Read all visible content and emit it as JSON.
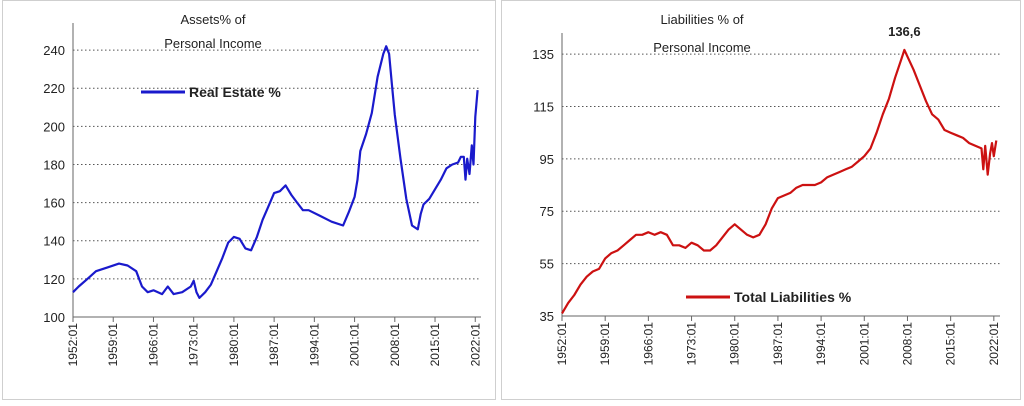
{
  "chart_data": [
    {
      "type": "line",
      "title": [
        "Assets% of",
        "Personal Income"
      ],
      "xlabel": "",
      "ylabel": "",
      "ylim": [
        100,
        250
      ],
      "yticks": [
        100,
        120,
        140,
        160,
        180,
        200,
        220,
        240
      ],
      "xlim": [
        1952,
        2023
      ],
      "xtick_labels": [
        "1952:01",
        "1959:01",
        "1966:01",
        "1973:01",
        "1980:01",
        "1987:01",
        "1994:01",
        "2001:01",
        "2008:01",
        "2015:01",
        "2022:01"
      ],
      "grid": "horizontal-dotted",
      "legend_position": "top-left",
      "series": [
        {
          "name": "Real Estate %",
          "color": "#1a1acc",
          "x": [
            1952.0,
            1953.0,
            1954.5,
            1956.0,
            1958.0,
            1960.0,
            1961.5,
            1963.0,
            1964.0,
            1965.0,
            1966.0,
            1967.5,
            1968.5,
            1969.5,
            1971.0,
            1972.5,
            1973.0,
            1973.5,
            1974.0,
            1975.0,
            1976.0,
            1977.0,
            1978.0,
            1979.0,
            1980.0,
            1981.0,
            1982.0,
            1983.0,
            1984.0,
            1985.0,
            1986.0,
            1987.0,
            1988.0,
            1989.0,
            1990.0,
            1991.0,
            1992.0,
            1993.0,
            1995.0,
            1997.0,
            1999.0,
            2000.0,
            2001.0,
            2001.5,
            2002.0,
            2003.0,
            2004.0,
            2005.0,
            2006.0,
            2006.5,
            2007.0,
            2007.5,
            2008.0,
            2009.0,
            2010.0,
            2011.0,
            2012.0,
            2012.5,
            2013.0,
            2014.0,
            2015.0,
            2016.0,
            2017.0,
            2018.0,
            2019.0,
            2019.5,
            2020.0,
            2020.3,
            2020.6,
            2021.0,
            2021.4,
            2021.7,
            2022.0,
            2022.4
          ],
          "values": [
            113,
            116,
            120,
            124,
            126,
            128,
            127,
            124,
            116,
            113,
            114,
            112,
            116,
            112,
            113,
            116,
            119,
            113,
            110,
            113,
            117,
            124,
            131,
            139,
            142,
            141,
            136,
            135,
            142,
            151,
            158,
            165,
            166,
            169,
            164,
            160,
            156,
            156,
            153,
            150,
            148,
            155,
            163,
            172,
            187,
            196,
            207,
            226,
            238,
            242,
            238,
            222,
            206,
            183,
            162,
            148,
            146,
            154,
            159,
            162,
            167,
            172,
            178,
            180,
            181,
            184,
            184,
            172,
            183,
            175,
            190,
            180,
            205,
            219
          ]
        }
      ]
    },
    {
      "type": "line",
      "title": [
        "Liabilities % of",
        "Personal Income"
      ],
      "xlabel": "",
      "ylabel": "",
      "ylim": [
        35,
        140
      ],
      "yticks": [
        35,
        55,
        75,
        95,
        115,
        135
      ],
      "xlim": [
        1952,
        2023
      ],
      "xtick_labels": [
        "1952:01",
        "1959:01",
        "1966:01",
        "1973:01",
        "1980:01",
        "1987:01",
        "1994:01",
        "2001:01",
        "2008:01",
        "2015:01",
        "2022:01"
      ],
      "grid": "horizontal-dotted",
      "legend_position": "bottom-center",
      "annotations": [
        {
          "text": "136,6",
          "x": 2007.5,
          "y": 136.6
        }
      ],
      "series": [
        {
          "name": "Total Liabilities %",
          "color": "#cc1111",
          "x": [
            1952.0,
            1953.0,
            1954.0,
            1955.0,
            1956.0,
            1957.0,
            1958.0,
            1959.0,
            1960.0,
            1961.0,
            1962.0,
            1963.0,
            1964.0,
            1965.0,
            1966.0,
            1967.0,
            1968.0,
            1969.0,
            1970.0,
            1971.0,
            1972.0,
            1973.0,
            1974.0,
            1975.0,
            1976.0,
            1977.0,
            1978.0,
            1979.0,
            1980.0,
            1981.0,
            1982.0,
            1983.0,
            1984.0,
            1985.0,
            1986.0,
            1987.0,
            1988.0,
            1989.0,
            1990.0,
            1991.0,
            1992.0,
            1993.0,
            1994.0,
            1995.0,
            1996.0,
            1997.0,
            1998.0,
            1999.0,
            2000.0,
            2001.0,
            2002.0,
            2003.0,
            2004.0,
            2005.0,
            2006.0,
            2007.0,
            2007.5,
            2008.0,
            2009.0,
            2010.0,
            2011.0,
            2012.0,
            2013.0,
            2014.0,
            2015.0,
            2016.0,
            2017.0,
            2018.0,
            2019.0,
            2020.0,
            2020.3,
            2020.6,
            2021.0,
            2021.4,
            2021.7,
            2022.0,
            2022.4
          ],
          "values": [
            36,
            40,
            43,
            47,
            50,
            52,
            53,
            57,
            59,
            60,
            62,
            64,
            66,
            66,
            67,
            66,
            67,
            66,
            62,
            62,
            61,
            63,
            62,
            60,
            60,
            62,
            65,
            68,
            70,
            68,
            66,
            65,
            66,
            70,
            76,
            80,
            81,
            82,
            84,
            85,
            85,
            85,
            86,
            88,
            89,
            90,
            91,
            92,
            94,
            96,
            99,
            105,
            112,
            118,
            126,
            133,
            136.6,
            134,
            129,
            123,
            117,
            112,
            110,
            106,
            105,
            104,
            103,
            101,
            100,
            99,
            91,
            100,
            89,
            97,
            101,
            96,
            102
          ]
        }
      ]
    }
  ]
}
